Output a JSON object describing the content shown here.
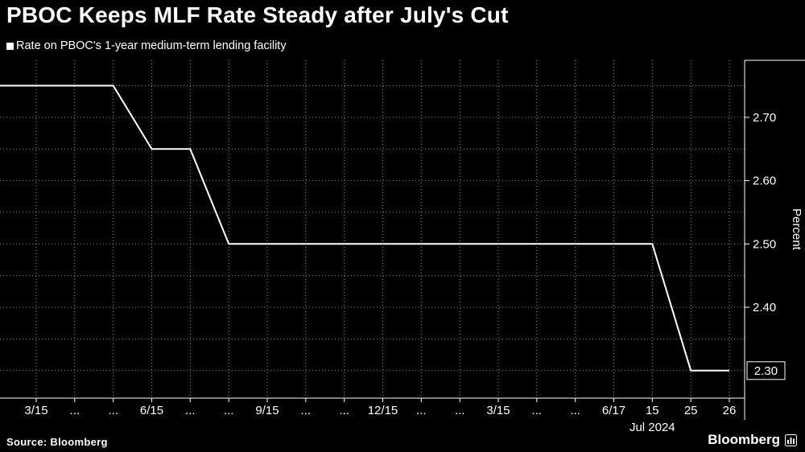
{
  "header": {
    "title": "PBOC Keeps MLF Rate Steady after July's Cut",
    "legend_label": "Rate on PBOC's 1-year medium-term lending facility"
  },
  "footer": {
    "source": "Source: Bloomberg",
    "brand": "Bloomberg"
  },
  "chart_data": {
    "type": "line",
    "title": "PBOC Keeps MLF Rate Steady after July's Cut",
    "series": [
      {
        "name": "Rate on PBOC's 1-year medium-term lending facility",
        "color": "#ffffff",
        "points": [
          {
            "x": -0.94,
            "y": 2.75
          },
          {
            "x": 2,
            "y": 2.75
          },
          {
            "x": 3,
            "y": 2.65
          },
          {
            "x": 4,
            "y": 2.65
          },
          {
            "x": 5,
            "y": 2.5
          },
          {
            "x": 16,
            "y": 2.5
          },
          {
            "x": 17,
            "y": 2.3
          },
          {
            "x": 18,
            "y": 2.3
          }
        ]
      }
    ],
    "x_tick_labels": [
      "3/15",
      "...",
      "...",
      "6/15",
      "...",
      "...",
      "9/15",
      "...",
      "...",
      "12/15",
      "...",
      "...",
      "3/15",
      "...",
      "...",
      "6/17",
      "15",
      "25",
      "26"
    ],
    "x_period_label": "Jul 2024",
    "x_period_label_tick": 16,
    "xlabel": "",
    "ylabel": "Percent",
    "ylim": [
      2.2565,
      2.79
    ],
    "y_ticks": [
      {
        "value": 2.7,
        "label": "2.70"
      },
      {
        "value": 2.6,
        "label": "2.60"
      },
      {
        "value": 2.5,
        "label": "2.50"
      },
      {
        "value": 2.4,
        "label": "2.40"
      }
    ],
    "last_value": {
      "value": 2.3,
      "label": "2.30"
    },
    "h_grid": {
      "start": 2.3,
      "step": 0.05,
      "end": 2.78
    },
    "grid": true,
    "legend_position": "top-left",
    "colors": {
      "background": "#000000",
      "foreground": "#ffffff"
    }
  }
}
